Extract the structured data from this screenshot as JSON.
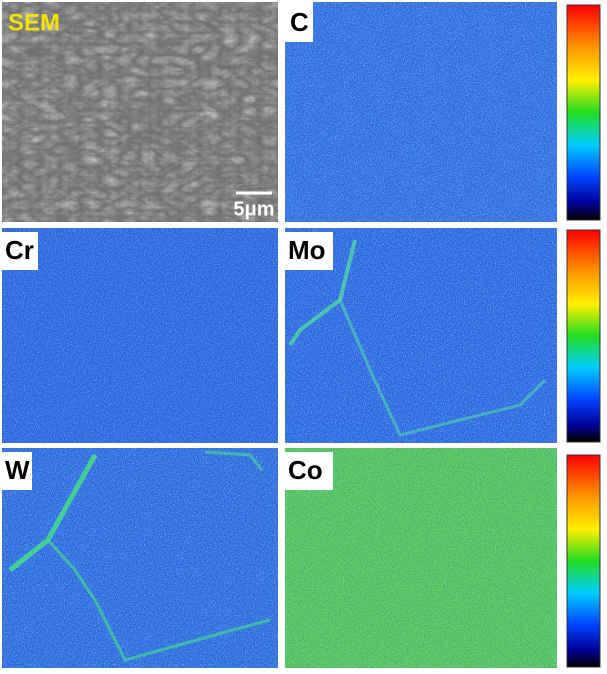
{
  "panels": [
    {
      "label": "SEM"
    },
    {
      "label": "C"
    },
    {
      "label": "Cr"
    },
    {
      "label": "Mo"
    },
    {
      "label": "W"
    },
    {
      "label": "Co"
    }
  ],
  "scale_bar": "5μm"
}
